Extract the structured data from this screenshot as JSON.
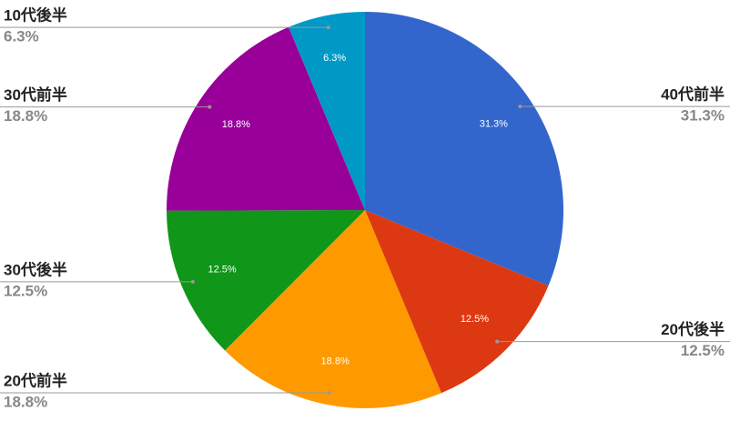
{
  "chart_data": {
    "type": "pie",
    "categories": [
      "40代前半",
      "20代後半",
      "20代前半",
      "30代後半",
      "30代前半",
      "10代後半"
    ],
    "values": [
      31.3,
      12.5,
      18.8,
      12.5,
      18.8,
      6.3
    ],
    "value_labels": [
      "31.3%",
      "12.5%",
      "18.8%",
      "12.5%",
      "18.8%",
      "6.3%"
    ],
    "colors": [
      "#3366cc",
      "#dc3912",
      "#ff9900",
      "#109618",
      "#990099",
      "#0099c6"
    ]
  }
}
